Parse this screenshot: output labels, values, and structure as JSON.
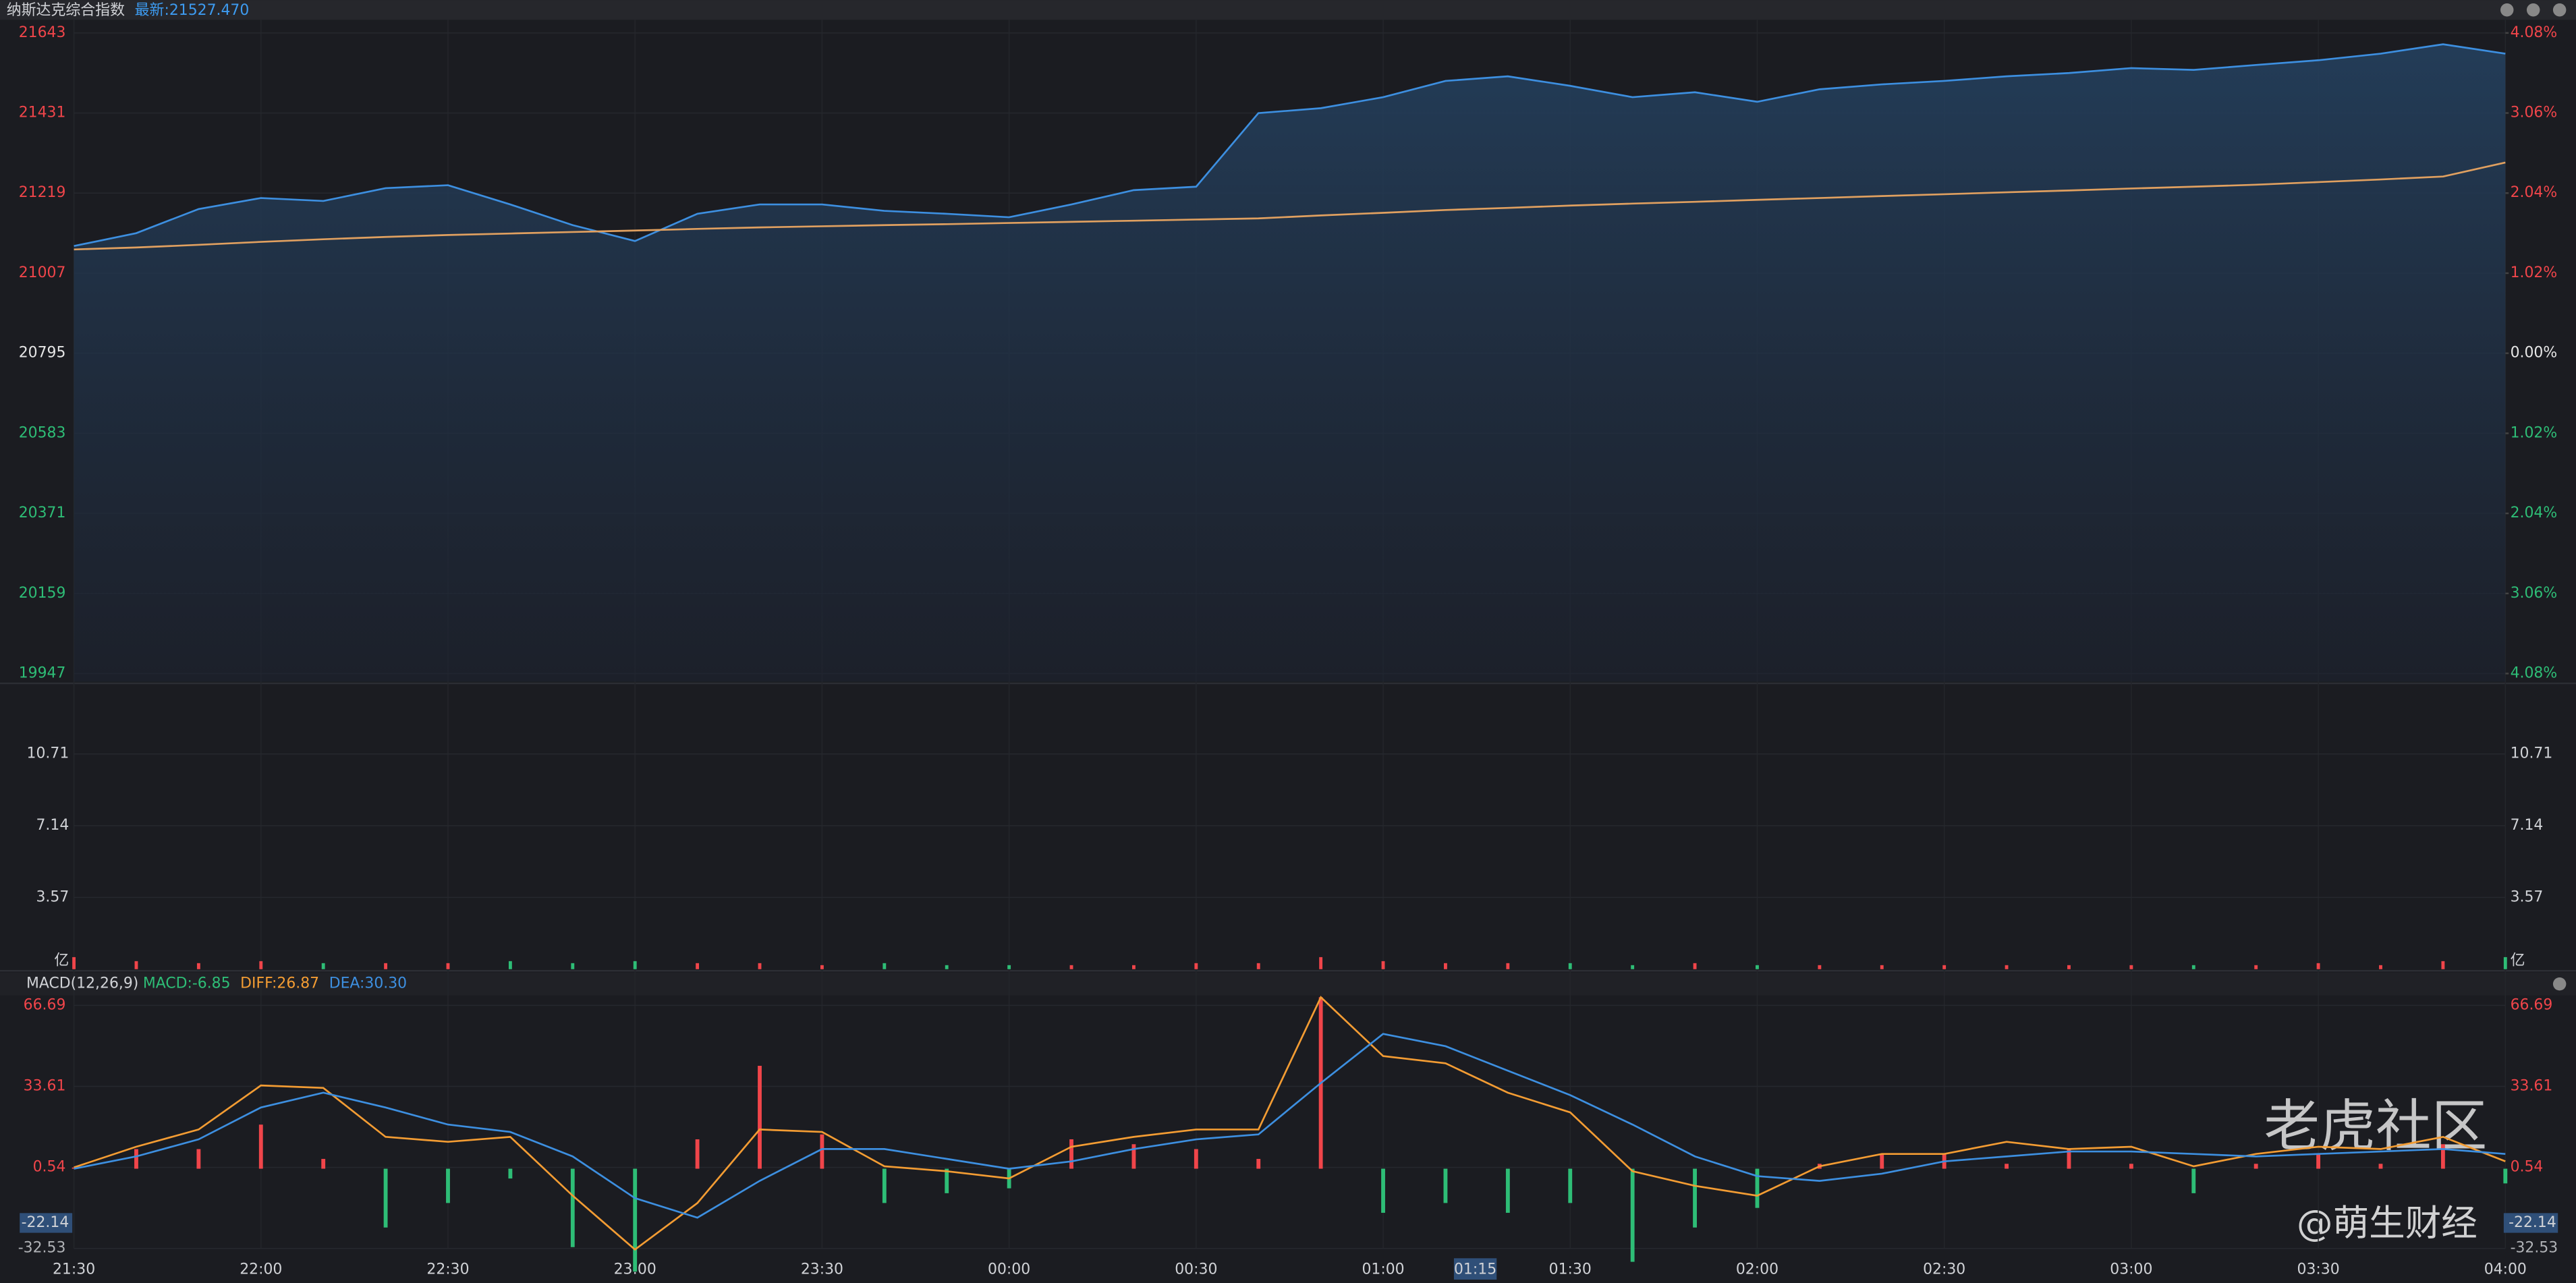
{
  "header": {
    "name": "纳斯达克综合指数",
    "latest": "最新:21527.470"
  },
  "watermark": {
    "brand": "老虎社区",
    "author": "@萌生财经"
  },
  "chart_data": [
    {
      "type": "line",
      "ylim": [
        19947,
        21643
      ],
      "yticks": [
        21643,
        21431,
        21219,
        21007,
        20795,
        20583,
        20371,
        20159,
        19947
      ],
      "y2lim": [
        -4.08,
        4.08
      ],
      "y2ticks": [
        {
          "value": 4.08,
          "label": "4.08%"
        },
        {
          "value": 3.06,
          "label": "3.06%"
        },
        {
          "value": 2.04,
          "label": "2.04%"
        },
        {
          "value": 1.02,
          "label": "1.02%"
        },
        {
          "value": 0,
          "label": "0.00%"
        },
        {
          "value": -1.02,
          "label": "1.02%"
        },
        {
          "value": -2.04,
          "label": "2.04%"
        },
        {
          "value": -3.06,
          "label": "3.06%"
        },
        {
          "value": -4.08,
          "label": "4.08%"
        }
      ],
      "up_color": "#f0454a",
      "flat_color": "#e6e6e6",
      "down_color": "#2ebd76",
      "grid": true,
      "series": [
        {
          "color": "#3d8fe0",
          "area": true,
          "values": [
            21079,
            21113,
            21177,
            21206,
            21198,
            21232,
            21240,
            21189,
            21134,
            21092,
            21164,
            21189,
            21189,
            21172,
            21164,
            21155,
            21189,
            21227,
            21236,
            21431,
            21444,
            21473,
            21516,
            21528,
            21503,
            21473,
            21486,
            21461,
            21494,
            21507,
            21516,
            21528,
            21537,
            21550,
            21545,
            21558,
            21571,
            21588,
            21613,
            21588
          ]
        },
        {
          "color": "#e0a060",
          "values": [
            21070,
            21075,
            21082,
            21090,
            21097,
            21103,
            21108,
            21112,
            21116,
            21120,
            21124,
            21128,
            21131,
            21134,
            21137,
            21140,
            21143,
            21146,
            21149,
            21152,
            21160,
            21167,
            21174,
            21180,
            21186,
            21191,
            21196,
            21201,
            21206,
            21211,
            21216,
            21221,
            21226,
            21231,
            21236,
            21241,
            21248,
            21255,
            21263,
            21300
          ]
        }
      ]
    },
    {
      "type": "bar",
      "ylim": [
        0,
        14.06
      ],
      "yticks": [
        3.57,
        7.14,
        10.71
      ],
      "unit": "亿",
      "up_color": "#f0454a",
      "down_color": "#2ebd76",
      "values": [
        0.6,
        0.4,
        0.3,
        0.4,
        0.3,
        0.3,
        0.3,
        0.4,
        0.3,
        0.4,
        0.3,
        0.3,
        0.2,
        0.3,
        0.2,
        0.2,
        0.2,
        0.2,
        0.3,
        0.3,
        0.6,
        0.4,
        0.3,
        0.3,
        0.3,
        0.2,
        0.3,
        0.2,
        0.2,
        0.2,
        0.2,
        0.2,
        0.2,
        0.2,
        0.2,
        0.2,
        0.3,
        0.2,
        0.4,
        0.6
      ]
    },
    {
      "type": "line",
      "indicator": "MACD(12,26,9)",
      "ylim": [
        -32.53,
        66.69
      ],
      "yticks": [
        66.69,
        33.61,
        0.54,
        -32.53
      ],
      "crosshair_y": -22.14,
      "crosshair_x": "01:15",
      "up_color": "#f0454a",
      "down_color": "#2ebd76",
      "categories": [
        "21:30",
        null,
        null,
        "22:00",
        null,
        null,
        "22:30",
        null,
        null,
        "23:00",
        null,
        null,
        "23:30",
        null,
        null,
        "00:00",
        null,
        null,
        "00:30",
        null,
        null,
        "01:00",
        null,
        null,
        "01:30",
        null,
        null,
        "02:00",
        null,
        null,
        "02:30",
        null,
        null,
        "03:00",
        null,
        null,
        "03:30",
        null,
        null,
        "04:00"
      ],
      "histogram": {
        "legend_label": "MACD:-6.85",
        "color": "#2ebd76",
        "values": [
          0.5,
          8,
          8,
          18,
          4,
          -24,
          -14,
          -4,
          -32,
          -42,
          12,
          42,
          14,
          -14,
          -10,
          -8,
          12,
          10,
          8,
          4,
          70,
          -18,
          -14,
          -18,
          -14,
          -38,
          -24,
          -16,
          2,
          6,
          6,
          2,
          8,
          2,
          -10,
          2,
          6,
          2,
          10,
          -6
        ]
      },
      "series": [
        {
          "legend_label": "DIFF:26.87",
          "color": "#f39c33",
          "values": [
            0.5,
            9,
            16,
            34,
            33,
            13,
            11,
            13,
            -11,
            -33,
            -14,
            16,
            15,
            1,
            -1,
            -4,
            9,
            13,
            16,
            16,
            70,
            46,
            43,
            31,
            23,
            -1,
            -7,
            -11,
            1,
            6,
            6,
            11,
            8,
            9,
            1,
            6,
            9,
            8,
            13,
            3
          ]
        },
        {
          "legend_label": "DEA:30.30",
          "color": "#3d8fe0",
          "values": [
            0,
            5,
            12,
            25,
            31,
            25,
            18,
            15,
            5,
            -12,
            -20,
            -5,
            8,
            8,
            4,
            0,
            3,
            8,
            12,
            14,
            35,
            55,
            50,
            40,
            30,
            18,
            5,
            -3,
            -5,
            -2,
            3,
            5,
            7,
            7,
            6,
            5,
            6,
            7,
            8,
            6
          ]
        }
      ]
    }
  ]
}
